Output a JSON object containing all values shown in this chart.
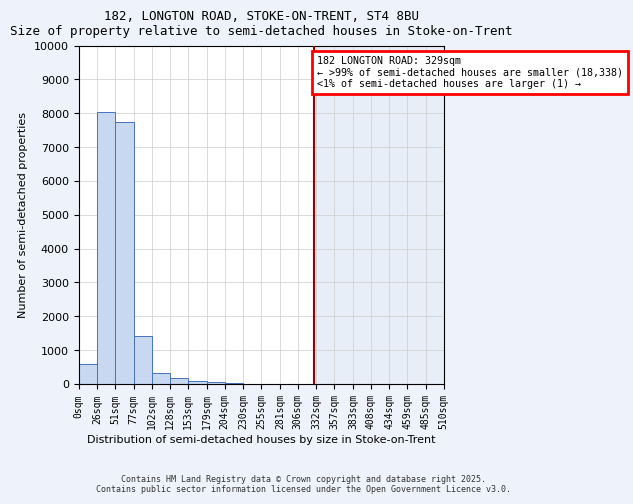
{
  "title_line1": "182, LONGTON ROAD, STOKE-ON-TRENT, ST4 8BU",
  "title_line2": "Size of property relative to semi-detached houses in Stoke-on-Trent",
  "xlabel": "Distribution of semi-detached houses by size in Stoke-on-Trent",
  "ylabel": "Number of semi-detached properties",
  "bin_edges": [
    0,
    26,
    51,
    77,
    102,
    128,
    153,
    179,
    204,
    230,
    255,
    281,
    306,
    332,
    357,
    383,
    408,
    434,
    459,
    485,
    510
  ],
  "bar_heights": [
    600,
    8050,
    7750,
    1420,
    330,
    175,
    100,
    70,
    40,
    0,
    0,
    0,
    0,
    0,
    0,
    0,
    0,
    0,
    0,
    0
  ],
  "bar_color": "#c8d8f0",
  "bar_edge_color": "#4472c4",
  "property_value": 329,
  "annotation_line1": "182 LONGTON ROAD: 329sqm",
  "annotation_line2": "← >99% of semi-detached houses are smaller (18,338)",
  "annotation_line3": "<1% of semi-detached houses are larger (1) →",
  "red_line_color": "#990000",
  "highlight_bg_color": "#e8eef8",
  "left_bg_color": "#ffffff",
  "ylim": [
    0,
    10000
  ],
  "xlim": [
    0,
    510
  ],
  "footer_line1": "Contains HM Land Registry data © Crown copyright and database right 2025.",
  "footer_line2": "Contains public sector information licensed under the Open Government Licence v3.0.",
  "grid_color": "#cccccc",
  "fig_bg_color": "#eef2fa",
  "tick_labels": [
    "0sqm",
    "26sqm",
    "51sqm",
    "77sqm",
    "102sqm",
    "128sqm",
    "153sqm",
    "179sqm",
    "204sqm",
    "230sqm",
    "255sqm",
    "281sqm",
    "306sqm",
    "332sqm",
    "357sqm",
    "383sqm",
    "408sqm",
    "434sqm",
    "459sqm",
    "485sqm",
    "510sqm"
  ]
}
